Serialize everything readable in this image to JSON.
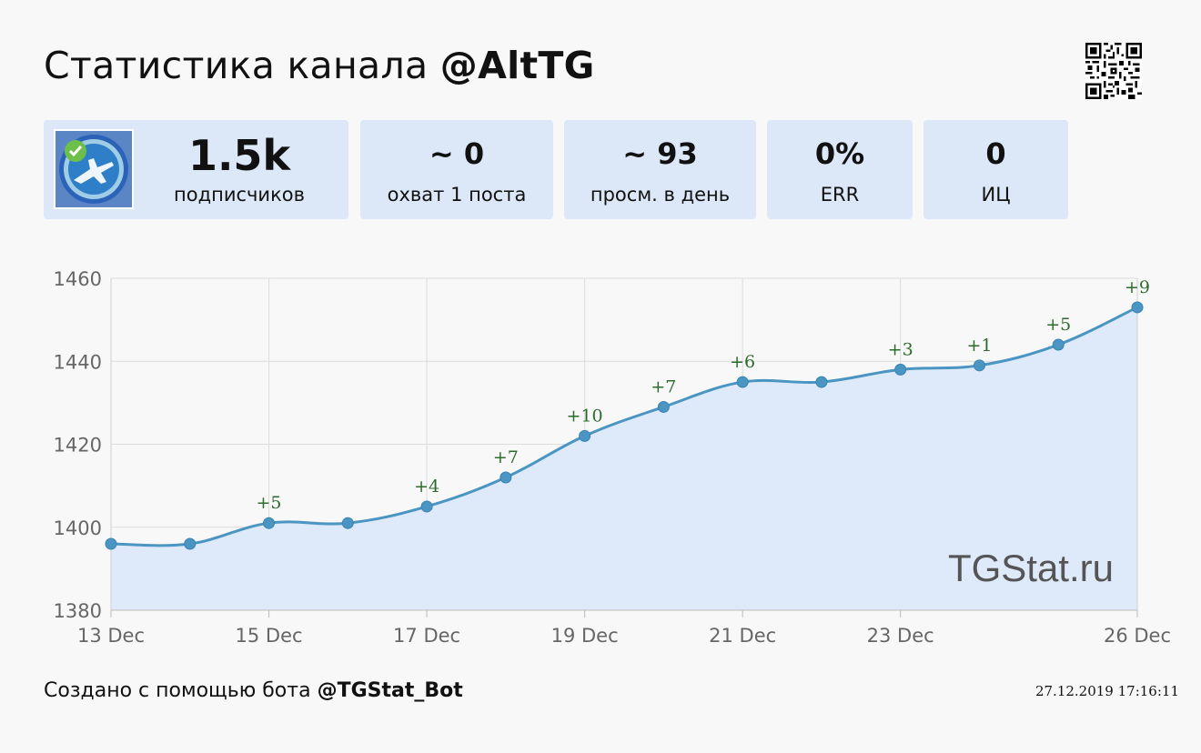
{
  "header": {
    "title_prefix": "Статистика канала",
    "channel": "@AltTG",
    "qr_icon": "qr-code-icon"
  },
  "stats": {
    "subscribers": {
      "value": "1.5k",
      "label": "подписчиков"
    },
    "reach": {
      "value": "~ 0",
      "label": "охват 1 поста"
    },
    "daily_views": {
      "value": "~ 93",
      "label": "просм. в день"
    },
    "err": {
      "value": "0%",
      "label": "ERR"
    },
    "ci": {
      "value": "0",
      "label": "ИЦ"
    }
  },
  "avatar": {
    "icon": "channel-avatar-jet-icon",
    "badge": "verified-check-icon"
  },
  "chart_data": {
    "type": "area",
    "x": [
      "2019-12-13",
      "2019-12-14",
      "2019-12-15",
      "2019-12-16",
      "2019-12-17",
      "2019-12-18",
      "2019-12-19",
      "2019-12-20",
      "2019-12-21",
      "2019-12-22",
      "2019-12-23",
      "2019-12-24",
      "2019-12-25",
      "2019-12-26"
    ],
    "values": [
      1396,
      1396,
      1401,
      1401,
      1405,
      1412,
      1422,
      1429,
      1435,
      1435,
      1438,
      1439,
      1444,
      1453
    ],
    "delta_labels": [
      "",
      "",
      "+5",
      "",
      "+4",
      "+7",
      "+10",
      "+7",
      "+6",
      "",
      "+3",
      "+1",
      "+5",
      "+9"
    ],
    "x_tick_labels": [
      "13 Dec",
      "15 Dec",
      "17 Dec",
      "19 Dec",
      "21 Dec",
      "23 Dec",
      "26 Dec"
    ],
    "x_tick_indices": [
      0,
      2,
      4,
      6,
      8,
      10,
      13
    ],
    "y_ticks": [
      1380,
      1400,
      1420,
      1440,
      1460
    ],
    "ylim": [
      1380,
      1460
    ],
    "grid": true,
    "line_color": "#4a95c2",
    "fill_color": "#deeafa",
    "delta_color": "#2d6b2d",
    "watermark": "TGStat.ru"
  },
  "footer": {
    "created_prefix": "Создано с помощью бота",
    "bot": "@TGStat_Bot",
    "timestamp": "27.12.2019 17:16:11"
  }
}
